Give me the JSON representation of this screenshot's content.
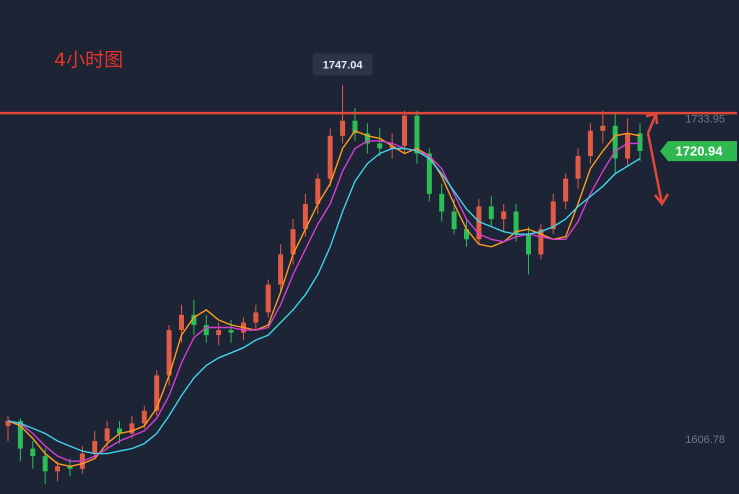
{
  "chart_data": {
    "type": "candlestick",
    "title": "4小时图",
    "timeframe": "4H",
    "y_range": [
      1585,
      1765
    ],
    "tick_labels": [
      "1733.95",
      "1606.78"
    ],
    "tick_values": [
      1733.95,
      1606.78
    ],
    "high_label": "1747.04",
    "high_value": 1747.04,
    "last_price_label": "1720.94",
    "last_price": 1720.94,
    "resistance_level": 1736.0,
    "colors": {
      "up": "#e25b45",
      "down": "#2cbf55",
      "ma_fast": "#ff9a1f",
      "ma_mid": "#d63ed2",
      "ma_slow": "#3fd4e6",
      "resistance": "#e0483a",
      "price_tag": "#2fb84f"
    },
    "moving_averages": [
      {
        "color": "#ff9a1f",
        "values": [
          1614,
          1612,
          1607,
          1601,
          1597,
          1596,
          1597,
          1599,
          1605,
          1609,
          1610,
          1612,
          1619,
          1632,
          1648,
          1655,
          1658,
          1654,
          1652,
          1651,
          1650,
          1652,
          1665,
          1680,
          1690,
          1700,
          1708,
          1722,
          1729,
          1727,
          1726,
          1723,
          1720,
          1722,
          1719,
          1711,
          1700,
          1690,
          1684,
          1683,
          1685,
          1689,
          1690,
          1688,
          1686,
          1687,
          1700,
          1714,
          1721,
          1727,
          1728,
          1727
        ]
      },
      {
        "color": "#d63ed2",
        "values": [
          1614,
          1613,
          1609,
          1604,
          1600,
          1598,
          1598,
          1600,
          1603,
          1606,
          1608,
          1610,
          1615,
          1624,
          1637,
          1647,
          1651,
          1651,
          1651,
          1650,
          1650,
          1651,
          1660,
          1672,
          1682,
          1692,
          1700,
          1713,
          1722,
          1725,
          1725,
          1724,
          1722,
          1721,
          1719,
          1714,
          1704,
          1694,
          1688,
          1686,
          1685,
          1687,
          1688,
          1687,
          1686,
          1686,
          1693,
          1704,
          1713,
          1721,
          1724,
          1724
        ]
      },
      {
        "color": "#3fd4e6",
        "values": [
          1614,
          1613,
          1611,
          1609,
          1606,
          1604,
          1602,
          1601,
          1601,
          1602,
          1603,
          1605,
          1609,
          1616,
          1624,
          1631,
          1636,
          1639,
          1641,
          1643,
          1646,
          1648,
          1653,
          1658,
          1664,
          1672,
          1683,
          1697,
          1709,
          1716,
          1720,
          1722,
          1722,
          1721,
          1718,
          1712,
          1705,
          1698,
          1693,
          1691,
          1689,
          1688,
          1688,
          1689,
          1691,
          1694,
          1699,
          1703,
          1707,
          1712,
          1715,
          1718
        ]
      }
    ],
    "candles": [
      [
        1612,
        1616,
        1606,
        1614
      ],
      [
        1614,
        1615,
        1598,
        1603
      ],
      [
        1603,
        1606,
        1595,
        1600
      ],
      [
        1600,
        1603,
        1589,
        1594
      ],
      [
        1594,
        1598,
        1590,
        1596
      ],
      [
        1596,
        1599,
        1592,
        1595
      ],
      [
        1595,
        1604,
        1593,
        1601
      ],
      [
        1601,
        1610,
        1599,
        1606
      ],
      [
        1606,
        1614,
        1603,
        1611
      ],
      [
        1611,
        1614,
        1605,
        1609
      ],
      [
        1609,
        1616,
        1607,
        1613
      ],
      [
        1613,
        1620,
        1611,
        1618
      ],
      [
        1618,
        1634,
        1616,
        1632
      ],
      [
        1632,
        1652,
        1628,
        1650
      ],
      [
        1650,
        1660,
        1645,
        1656
      ],
      [
        1656,
        1662,
        1648,
        1652
      ],
      [
        1652,
        1656,
        1645,
        1648
      ],
      [
        1648,
        1653,
        1644,
        1650
      ],
      [
        1650,
        1654,
        1645,
        1649
      ],
      [
        1649,
        1655,
        1646,
        1653
      ],
      [
        1653,
        1660,
        1650,
        1657
      ],
      [
        1657,
        1670,
        1655,
        1668
      ],
      [
        1668,
        1684,
        1665,
        1680
      ],
      [
        1680,
        1694,
        1676,
        1690
      ],
      [
        1690,
        1704,
        1687,
        1700
      ],
      [
        1700,
        1712,
        1696,
        1710
      ],
      [
        1710,
        1730,
        1707,
        1727
      ],
      [
        1727,
        1747,
        1724,
        1733
      ],
      [
        1733,
        1738,
        1725,
        1728
      ],
      [
        1728,
        1732,
        1720,
        1724
      ],
      [
        1724,
        1730,
        1719,
        1722
      ],
      [
        1722,
        1728,
        1718,
        1723
      ],
      [
        1723,
        1737,
        1720,
        1735
      ],
      [
        1735,
        1737,
        1716,
        1720
      ],
      [
        1720,
        1722,
        1701,
        1704
      ],
      [
        1704,
        1708,
        1693,
        1697
      ],
      [
        1697,
        1702,
        1688,
        1690
      ],
      [
        1690,
        1694,
        1683,
        1686
      ],
      [
        1686,
        1702,
        1684,
        1699
      ],
      [
        1699,
        1703,
        1691,
        1694
      ],
      [
        1694,
        1700,
        1689,
        1697
      ],
      [
        1697,
        1700,
        1685,
        1688
      ],
      [
        1688,
        1691,
        1672,
        1680
      ],
      [
        1680,
        1692,
        1678,
        1690
      ],
      [
        1690,
        1704,
        1688,
        1701
      ],
      [
        1701,
        1712,
        1698,
        1710
      ],
      [
        1710,
        1722,
        1706,
        1719
      ],
      [
        1719,
        1732,
        1716,
        1729
      ],
      [
        1729,
        1737,
        1724,
        1731
      ],
      [
        1731,
        1736,
        1712,
        1718
      ],
      [
        1718,
        1734,
        1715,
        1728
      ],
      [
        1728,
        1732,
        1717,
        1721
      ]
    ]
  }
}
